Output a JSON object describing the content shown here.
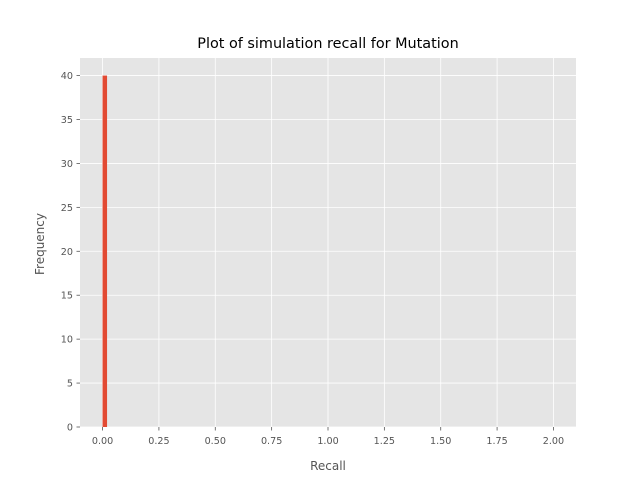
{
  "chart_data": {
    "type": "bar",
    "title": "Plot of simulation recall for Mutation",
    "xlabel": "Recall",
    "ylabel": "Frequency",
    "xlim": [
      -0.1,
      2.1
    ],
    "ylim": [
      0,
      42
    ],
    "x_ticks": [
      "0.00",
      "0.25",
      "0.50",
      "0.75",
      "1.00",
      "1.25",
      "1.50",
      "1.75",
      "2.00"
    ],
    "y_ticks": [
      "0",
      "5",
      "10",
      "15",
      "20",
      "25",
      "30",
      "35",
      "40"
    ],
    "bins": [
      {
        "start": 0.0,
        "end": 0.02,
        "count": 40
      }
    ],
    "grid": true,
    "style": "ggplot",
    "colors": {
      "bar": "#E24A33",
      "background": "#E5E5E5",
      "grid": "#FFFFFF",
      "text": "#555555"
    }
  }
}
